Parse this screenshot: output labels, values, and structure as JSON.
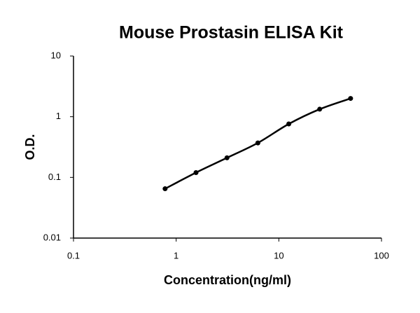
{
  "chart_data": {
    "type": "scatter",
    "title": "Mouse Prostasin ELISA Kit",
    "x_label": "Concentration(ng/ml)",
    "y_label": "O.D.",
    "x": [
      0.78,
      1.56,
      3.125,
      6.25,
      12.5,
      25,
      50
    ],
    "values": [
      0.065,
      0.12,
      0.21,
      0.37,
      0.76,
      1.33,
      2.0
    ],
    "color": "#000000",
    "curve": "smooth",
    "xscale": "log",
    "yscale": "log",
    "xlim": [
      0.1,
      100
    ],
    "xticks": [
      0.1,
      1,
      10,
      100
    ],
    "ylim": [
      0.01,
      10
    ],
    "yticks": [
      0.01,
      0.1,
      1,
      10
    ]
  }
}
